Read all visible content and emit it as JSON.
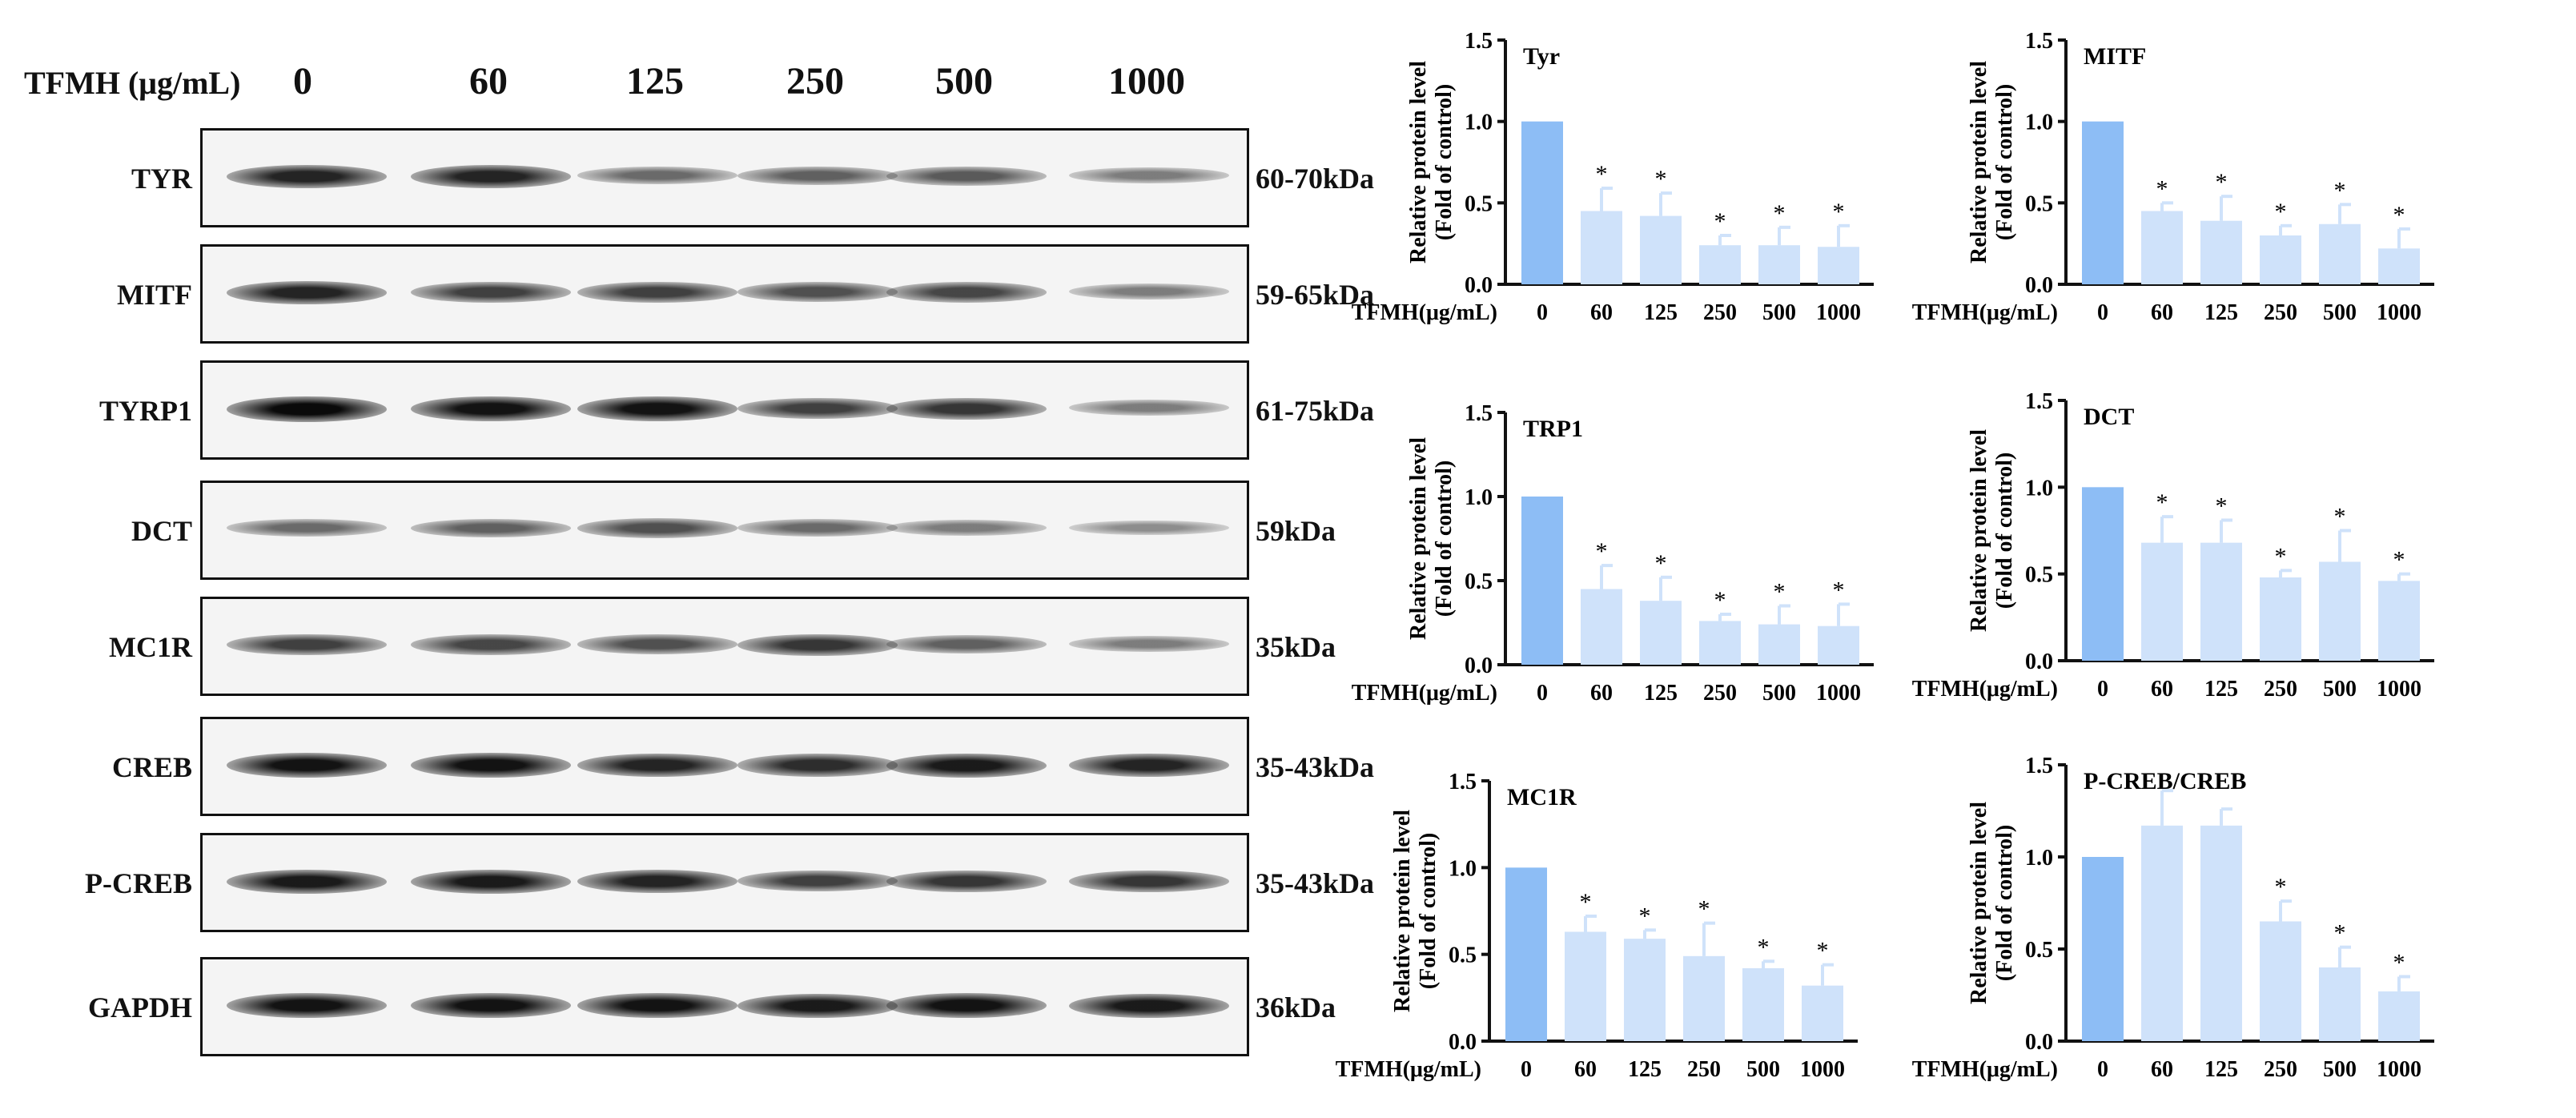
{
  "treatment_label": "TFMH (μg/mL)",
  "doses": [
    "0",
    "60",
    "125",
    "250",
    "500",
    "1000"
  ],
  "blots": [
    {
      "name": "TYR",
      "mw": "60-70kDa",
      "intensity": [
        0.85,
        0.85,
        0.45,
        0.5,
        0.55,
        0.35
      ]
    },
    {
      "name": "MITF",
      "mw": "59-65kDa",
      "intensity": [
        0.85,
        0.7,
        0.7,
        0.6,
        0.65,
        0.35
      ]
    },
    {
      "name": "TYRP1",
      "mw": "61-75kDa",
      "intensity": [
        1.0,
        0.95,
        0.95,
        0.7,
        0.75,
        0.35
      ]
    },
    {
      "name": "DCT",
      "mw": "59kDa",
      "intensity": [
        0.45,
        0.5,
        0.6,
        0.45,
        0.35,
        0.25
      ]
    },
    {
      "name": "MC1R",
      "mw": "35kDa",
      "intensity": [
        0.7,
        0.65,
        0.6,
        0.75,
        0.5,
        0.35
      ]
    },
    {
      "name": "CREB",
      "mw": "35-43kDa",
      "intensity": [
        0.95,
        0.95,
        0.85,
        0.8,
        0.9,
        0.85
      ]
    },
    {
      "name": "P-CREB",
      "mw": "35-43kDa",
      "intensity": [
        0.9,
        0.9,
        0.85,
        0.7,
        0.75,
        0.75
      ]
    },
    {
      "name": "GAPDH",
      "mw": "36kDa",
      "intensity": [
        0.95,
        0.95,
        0.95,
        0.9,
        0.95,
        0.9
      ]
    }
  ],
  "colors": {
    "control_bar": "#8dbdf5",
    "treated_bar": "#cfe2fa",
    "axis": "#111111"
  },
  "chart_data": [
    {
      "type": "bar",
      "title": "Tyr",
      "ylabel": "Relative protein level\n(Fold of control)",
      "xlabel": "TFMH(μg/mL)",
      "categories": [
        "0",
        "60",
        "125",
        "250",
        "500",
        "1000"
      ],
      "values": [
        1.0,
        0.45,
        0.42,
        0.24,
        0.24,
        0.23
      ],
      "errors": [
        0,
        0.14,
        0.14,
        0.06,
        0.11,
        0.13
      ],
      "significance": [
        "",
        "*",
        "*",
        "*",
        "*",
        "*"
      ],
      "ylim": [
        0,
        1.5
      ],
      "yticks": [
        "0.0",
        "0.5",
        "1.0",
        "1.5"
      ]
    },
    {
      "type": "bar",
      "title": "MITF",
      "ylabel": "Relative protein level\n(Fold of control)",
      "xlabel": "TFMH(μg/mL)",
      "categories": [
        "0",
        "60",
        "125",
        "250",
        "500",
        "1000"
      ],
      "values": [
        1.0,
        0.45,
        0.39,
        0.3,
        0.37,
        0.22
      ],
      "errors": [
        0,
        0.05,
        0.15,
        0.06,
        0.12,
        0.12
      ],
      "significance": [
        "",
        "*",
        "*",
        "*",
        "*",
        "*"
      ],
      "ylim": [
        0,
        1.5
      ],
      "yticks": [
        "0.0",
        "0.5",
        "1.0",
        "1.5"
      ]
    },
    {
      "type": "bar",
      "title": "TRP1",
      "ylabel": "Relative protein level\n(Fold of control)",
      "xlabel": "TFMH(μg/mL)",
      "categories": [
        "0",
        "60",
        "125",
        "250",
        "500",
        "1000"
      ],
      "values": [
        1.0,
        0.45,
        0.38,
        0.26,
        0.24,
        0.23
      ],
      "errors": [
        0,
        0.14,
        0.14,
        0.04,
        0.11,
        0.13
      ],
      "significance": [
        "",
        "*",
        "*",
        "*",
        "*",
        "*"
      ],
      "ylim": [
        0,
        1.5
      ],
      "yticks": [
        "0.0",
        "0.5",
        "1.0",
        "1.5"
      ]
    },
    {
      "type": "bar",
      "title": "DCT",
      "ylabel": "Relative protein level\n(Fold of control)",
      "xlabel": "TFMH(μg/mL)",
      "categories": [
        "0",
        "60",
        "125",
        "250",
        "500",
        "1000"
      ],
      "values": [
        1.0,
        0.68,
        0.68,
        0.48,
        0.57,
        0.46
      ],
      "errors": [
        0,
        0.15,
        0.13,
        0.04,
        0.18,
        0.04
      ],
      "significance": [
        "",
        "*",
        "*",
        "*",
        "*",
        "*"
      ],
      "ylim": [
        0,
        1.5
      ],
      "yticks": [
        "0.0",
        "0.5",
        "1.0",
        "1.5"
      ]
    },
    {
      "type": "bar",
      "title": "MC1R",
      "ylabel": "Relative protein level\n(Fold of control)",
      "xlabel": "TFMH(μg/mL)",
      "categories": [
        "0",
        "60",
        "125",
        "250",
        "500",
        "1000"
      ],
      "values": [
        1.0,
        0.63,
        0.59,
        0.49,
        0.42,
        0.32
      ],
      "errors": [
        0,
        0.09,
        0.05,
        0.19,
        0.04,
        0.12
      ],
      "significance": [
        "",
        "*",
        "*",
        "*",
        "*",
        "*"
      ],
      "ylim": [
        0,
        1.5
      ],
      "yticks": [
        "0.0",
        "0.5",
        "1.0",
        "1.5"
      ]
    },
    {
      "type": "bar",
      "title": "P-CREB/CREB",
      "ylabel": "Relative protein level\n(Fold of control)",
      "xlabel": "TFMH(μg/mL)",
      "categories": [
        "0",
        "60",
        "125",
        "250",
        "500",
        "1000"
      ],
      "values": [
        1.0,
        1.17,
        1.17,
        0.65,
        0.4,
        0.27
      ],
      "errors": [
        0,
        0.19,
        0.09,
        0.11,
        0.11,
        0.08
      ],
      "significance": [
        "",
        "",
        "",
        "*",
        "*",
        "*"
      ],
      "ylim": [
        0,
        1.5
      ],
      "yticks": [
        "0.0",
        "0.5",
        "1.0",
        "1.5"
      ]
    }
  ]
}
